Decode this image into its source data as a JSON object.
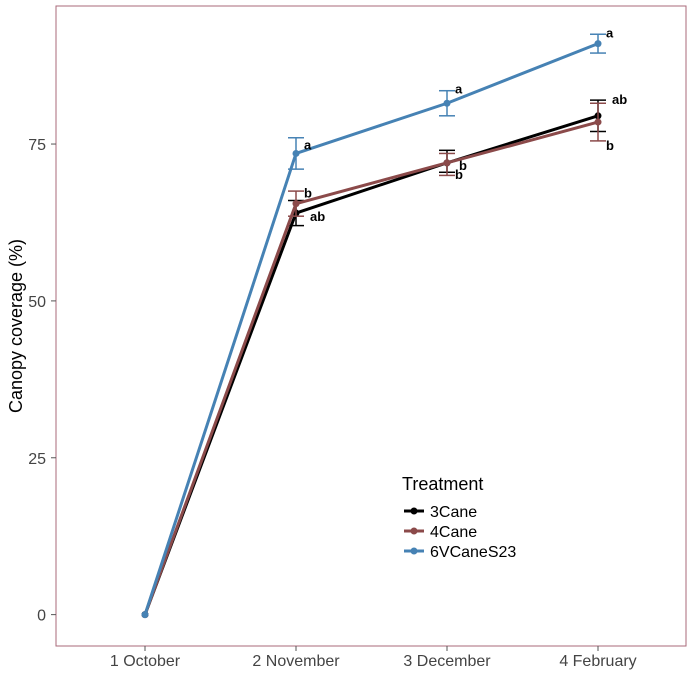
{
  "chart_data": {
    "type": "line",
    "title": "",
    "xlabel": "",
    "ylabel": "Canopy coverage (%)",
    "categories": [
      "1 October",
      "2 November",
      "3 December",
      "4 February"
    ],
    "ylim": [
      -5,
      97
    ],
    "yticks": [
      0,
      25,
      50,
      75
    ],
    "ytick_labels": [
      "0",
      "25",
      "50",
      "75"
    ],
    "grid": false,
    "legend": {
      "title": "Treatment",
      "position": "bottom-right"
    },
    "series": [
      {
        "name": "3Cane",
        "color": "#000000",
        "values": [
          0,
          64,
          72,
          79.5
        ],
        "err_low": [
          0,
          62,
          70.5,
          77
        ],
        "err_high": [
          0,
          66,
          74,
          82
        ],
        "significance": [
          "",
          "ab",
          "b",
          "ab"
        ]
      },
      {
        "name": "4Cane",
        "color": "#8B4A4A",
        "values": [
          0,
          65.5,
          72,
          78.5
        ],
        "err_low": [
          0,
          63.5,
          70,
          75.5
        ],
        "err_high": [
          0,
          67.5,
          73.5,
          81.5
        ],
        "significance": [
          "",
          "b",
          "b",
          "b"
        ]
      },
      {
        "name": "6VCaneS23",
        "color": "#4682B4",
        "values": [
          0,
          73.5,
          81.5,
          91
        ],
        "err_low": [
          0,
          71,
          79.5,
          89.5
        ],
        "err_high": [
          0,
          76,
          83.5,
          92.5
        ],
        "significance": [
          "",
          "a",
          "a",
          "a"
        ]
      }
    ]
  }
}
